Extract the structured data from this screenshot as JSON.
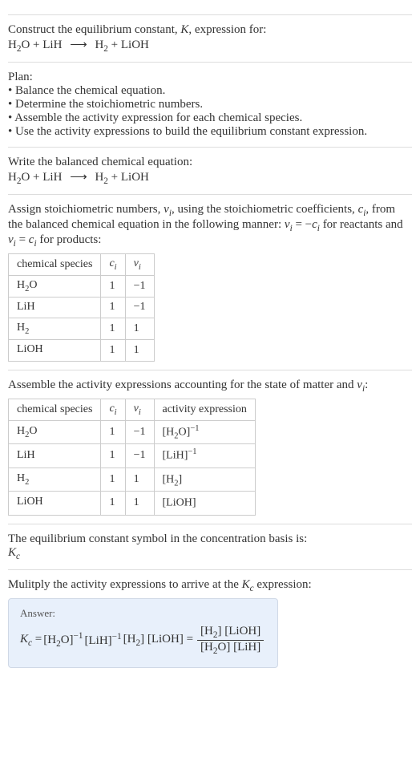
{
  "s1": {
    "line1": "Construct the equilibrium constant, ",
    "kvar": "K",
    "line1b": ", expression for:",
    "eq_lhs1": "H",
    "eq_lhs1_sub": "2",
    "eq_lhs1_tail": "O + LiH",
    "arrow": "⟶",
    "eq_rhs1": "H",
    "eq_rhs1_sub": "2",
    "eq_rhs1_tail": " + LiOH"
  },
  "s2": {
    "heading": "Plan:",
    "b1": "• Balance the chemical equation.",
    "b2": "• Determine the stoichiometric numbers.",
    "b3": "• Assemble the activity expression for each chemical species.",
    "b4": "• Use the activity expressions to build the equilibrium constant expression."
  },
  "s3": {
    "heading": "Write the balanced chemical equation:",
    "eq_lhs1": "H",
    "eq_lhs1_sub": "2",
    "eq_lhs1_tail": "O + LiH",
    "arrow": "⟶",
    "eq_rhs1": "H",
    "eq_rhs1_sub": "2",
    "eq_rhs1_tail": " + LiOH"
  },
  "s4": {
    "t1": "Assign stoichiometric numbers, ",
    "nu": "ν",
    "nu_sub": "i",
    "t2": ", using the stoichiometric coefficients, ",
    "c": "c",
    "c_sub": "i",
    "t3": ", from the balanced chemical equation in the following manner: ",
    "expr1a": "ν",
    "expr1a_sub": "i",
    "expr1_eq": " = −",
    "expr1b": "c",
    "expr1b_sub": "i",
    "t4": " for reactants and ",
    "expr2a": "ν",
    "expr2a_sub": "i",
    "expr2_eq": " = ",
    "expr2b": "c",
    "expr2b_sub": "i",
    "t5": " for products:",
    "th1": "chemical species",
    "th2": "c",
    "th2_sub": "i",
    "th3": "ν",
    "th3_sub": "i",
    "rows": [
      {
        "sp_a": "H",
        "sp_sub": "2",
        "sp_b": "O",
        "c": "1",
        "v": "−1"
      },
      {
        "sp_a": "LiH",
        "sp_sub": "",
        "sp_b": "",
        "c": "1",
        "v": "−1"
      },
      {
        "sp_a": "H",
        "sp_sub": "2",
        "sp_b": "",
        "c": "1",
        "v": "1"
      },
      {
        "sp_a": "LiOH",
        "sp_sub": "",
        "sp_b": "",
        "c": "1",
        "v": "1"
      }
    ]
  },
  "s5": {
    "t1": "Assemble the activity expressions accounting for the state of matter and ",
    "nu": "ν",
    "nu_sub": "i",
    "t2": ":",
    "th1": "chemical species",
    "th2": "c",
    "th2_sub": "i",
    "th3": "ν",
    "th3_sub": "i",
    "th4": "activity expression",
    "rows": [
      {
        "sp_a": "H",
        "sp_sub": "2",
        "sp_b": "O",
        "c": "1",
        "v": "−1",
        "ae_a": "[H",
        "ae_sub": "2",
        "ae_b": "O]",
        "ae_sup": "−1"
      },
      {
        "sp_a": "LiH",
        "sp_sub": "",
        "sp_b": "",
        "c": "1",
        "v": "−1",
        "ae_a": "[LiH]",
        "ae_sub": "",
        "ae_b": "",
        "ae_sup": "−1"
      },
      {
        "sp_a": "H",
        "sp_sub": "2",
        "sp_b": "",
        "c": "1",
        "v": "1",
        "ae_a": "[H",
        "ae_sub": "2",
        "ae_b": "]",
        "ae_sup": ""
      },
      {
        "sp_a": "LiOH",
        "sp_sub": "",
        "sp_b": "",
        "c": "1",
        "v": "1",
        "ae_a": "[LiOH]",
        "ae_sub": "",
        "ae_b": "",
        "ae_sup": ""
      }
    ]
  },
  "s6": {
    "t1": "The equilibrium constant symbol in the concentration basis is:",
    "k": "K",
    "k_sub": "c"
  },
  "s7": {
    "t1": "Mulitply the activity expressions to arrive at the ",
    "k": "K",
    "k_sub": "c",
    "t2": " expression:",
    "answer_label": "Answer:",
    "kc": "K",
    "kc_sub": "c",
    "eq": " = ",
    "p1a": "[H",
    "p1sub": "2",
    "p1b": "O]",
    "p1sup": "−1",
    "p2": " [LiH]",
    "p2sup": "−1",
    "p3a": " [H",
    "p3sub": "2",
    "p3b": "] [LiOH] = ",
    "num_a": "[H",
    "num_sub": "2",
    "num_b": "] [LiOH]",
    "den_a": "[H",
    "den_sub": "2",
    "den_b": "O] [LiH]"
  }
}
